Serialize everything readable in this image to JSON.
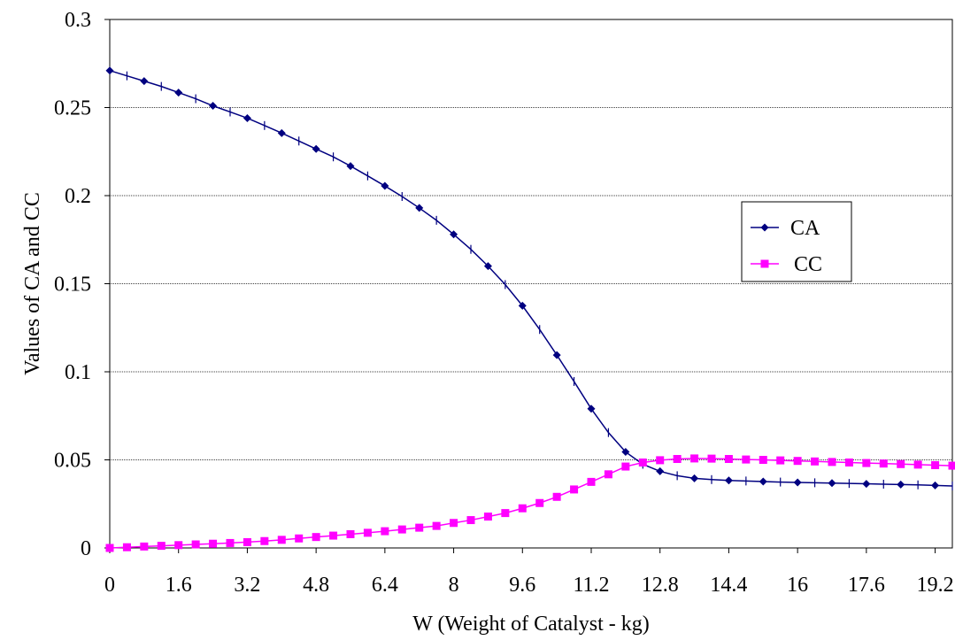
{
  "chart_data": {
    "type": "line",
    "title": "",
    "xlabel": "W (Weight of Catalyst - kg)",
    "ylabel": "Values of CA and CC",
    "xlim": [
      0,
      19.6
    ],
    "ylim": [
      0,
      0.3
    ],
    "x_ticks": [
      "0",
      "1.6",
      "3.2",
      "4.8",
      "6.4",
      "8",
      "9.6",
      "11.2",
      "12.8",
      "14.4",
      "16",
      "17.6",
      "19.2"
    ],
    "y_ticks": [
      "0",
      "0.05",
      "0.1",
      "0.15",
      "0.2",
      "0.25",
      "0.3"
    ],
    "grid": "horizontal",
    "legend_position": "right",
    "x": [
      0,
      0.4,
      0.8,
      1.2,
      1.6,
      2.0,
      2.4,
      2.8,
      3.2,
      3.6,
      4.0,
      4.4,
      4.8,
      5.2,
      5.6,
      6.0,
      6.4,
      6.8,
      7.2,
      7.6,
      8.0,
      8.4,
      8.8,
      9.2,
      9.6,
      10.0,
      10.4,
      10.8,
      11.2,
      11.6,
      12.0,
      12.4,
      12.8,
      13.2,
      13.6,
      14.0,
      14.4,
      14.8,
      15.2,
      15.6,
      16.0,
      16.4,
      16.8,
      17.2,
      17.6,
      18.0,
      18.4,
      18.8,
      19.2,
      19.6
    ],
    "series": [
      {
        "name": "CA",
        "color": "#000080",
        "marker": "diamond",
        "values": [
          0.271,
          0.268,
          0.265,
          0.262,
          0.2585,
          0.255,
          0.251,
          0.2475,
          0.244,
          0.2398,
          0.2355,
          0.231,
          0.2265,
          0.222,
          0.2168,
          0.2112,
          0.2055,
          0.1995,
          0.193,
          0.186,
          0.178,
          0.1695,
          0.16,
          0.1495,
          0.1375,
          0.124,
          0.1095,
          0.0945,
          0.079,
          0.0655,
          0.0545,
          0.0475,
          0.0435,
          0.041,
          0.0395,
          0.0388,
          0.0383,
          0.038,
          0.0377,
          0.0374,
          0.0372,
          0.037,
          0.0368,
          0.0366,
          0.0364,
          0.0362,
          0.036,
          0.0358,
          0.0355,
          0.0352
        ]
      },
      {
        "name": "CC",
        "color": "#ff00ff",
        "marker": "square",
        "values": [
          0.0,
          0.0004,
          0.0008,
          0.0012,
          0.0016,
          0.002,
          0.0024,
          0.0028,
          0.0033,
          0.0039,
          0.0046,
          0.0054,
          0.0062,
          0.007,
          0.0078,
          0.0086,
          0.0095,
          0.0105,
          0.0115,
          0.0125,
          0.0142,
          0.0158,
          0.0178,
          0.0198,
          0.0225,
          0.0255,
          0.029,
          0.0332,
          0.0375,
          0.0418,
          0.0462,
          0.0485,
          0.0498,
          0.0505,
          0.0508,
          0.0507,
          0.0505,
          0.0502,
          0.05,
          0.0497,
          0.0494,
          0.0491,
          0.0488,
          0.0485,
          0.0482,
          0.0479,
          0.0476,
          0.0473,
          0.047,
          0.0467
        ]
      }
    ]
  }
}
